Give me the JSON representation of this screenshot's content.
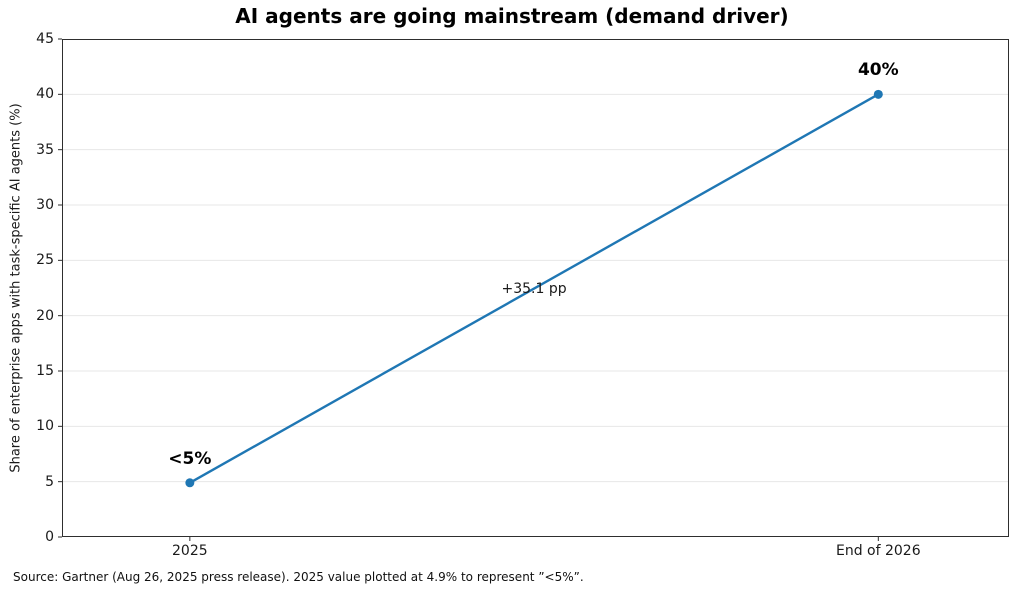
{
  "chart_data": {
    "type": "line",
    "title": "AI agents are going mainstream (demand driver)",
    "categories": [
      "2025",
      "End of 2026"
    ],
    "values": [
      4.9,
      40
    ],
    "point_labels": [
      "<5%",
      "40%"
    ],
    "delta_annotation": "+35.1 pp",
    "xlabel": "",
    "ylabel": "Share of enterprise apps with task-specific AI agents (%)",
    "ylim": [
      0,
      45
    ],
    "yticks": [
      0,
      5,
      10,
      15,
      20,
      25,
      30,
      35,
      40,
      45
    ],
    "grid": "horizontal",
    "legend": "none",
    "line_color": "#1f77b4",
    "gridline_color": "#e7e7e7",
    "spine_color": "#2e2e2e"
  },
  "footer": {
    "text": "Source: Gartner (Aug 26, 2025 press release). 2025 value plotted at 4.9% to represent ”<5%”."
  }
}
